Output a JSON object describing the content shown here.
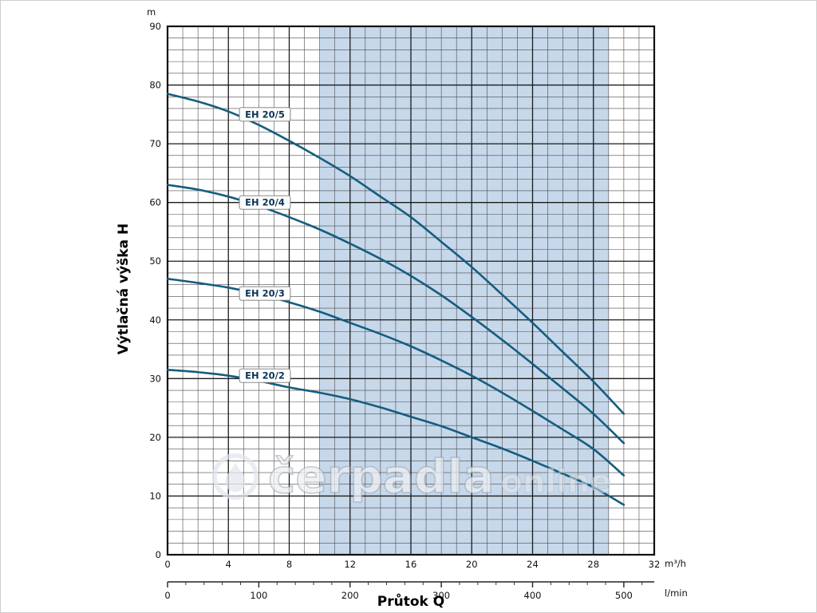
{
  "chart_data": {
    "type": "line",
    "title": "",
    "xlabel": "Průtok Q",
    "ylabel": "Výtlačná výška H",
    "y_unit": "m",
    "x_unit": "m³/h",
    "x_unit_secondary": "l/min",
    "xlim": [
      0,
      32
    ],
    "ylim": [
      0,
      90
    ],
    "grid": true,
    "x_major_ticks": [
      0,
      4,
      8,
      12,
      16,
      20,
      24,
      28,
      32
    ],
    "x_minor_step": 1,
    "y_major_ticks": [
      0,
      10,
      20,
      30,
      40,
      50,
      60,
      70,
      80,
      90
    ],
    "y_minor_step": 2,
    "secondary_axis": {
      "unit": "l/min",
      "ticks": [
        0,
        100,
        200,
        300,
        400,
        500
      ],
      "minor_step": 20,
      "max": 533.3,
      "lmin_per_m3h": 16.6667
    },
    "shaded_band": {
      "x_from": 10,
      "x_to": 29
    },
    "series": [
      {
        "name": "EH 20/5",
        "label": {
          "x": 6.4,
          "y": 75
        },
        "points": [
          [
            0,
            78.5
          ],
          [
            2,
            77.2
          ],
          [
            4,
            75.5
          ],
          [
            6,
            73.2
          ],
          [
            8,
            70.5
          ],
          [
            10,
            67.6
          ],
          [
            12,
            64.5
          ],
          [
            14,
            61.0
          ],
          [
            16,
            57.5
          ],
          [
            18,
            53.3
          ],
          [
            20,
            49.0
          ],
          [
            22,
            44.3
          ],
          [
            24,
            39.5
          ],
          [
            26,
            34.5
          ],
          [
            28,
            29.5
          ],
          [
            30,
            24.0
          ]
        ]
      },
      {
        "name": "EH 20/4",
        "label": {
          "x": 6.4,
          "y": 60
        },
        "points": [
          [
            0,
            63.0
          ],
          [
            2,
            62.2
          ],
          [
            4,
            61.0
          ],
          [
            6,
            59.4
          ],
          [
            8,
            57.5
          ],
          [
            10,
            55.4
          ],
          [
            12,
            53.0
          ],
          [
            14,
            50.4
          ],
          [
            16,
            47.5
          ],
          [
            18,
            44.2
          ],
          [
            20,
            40.5
          ],
          [
            22,
            36.6
          ],
          [
            24,
            32.5
          ],
          [
            26,
            28.3
          ],
          [
            28,
            24.0
          ],
          [
            30,
            19.0
          ]
        ]
      },
      {
        "name": "EH 20/3",
        "label": {
          "x": 6.4,
          "y": 44.5
        },
        "points": [
          [
            0,
            47.0
          ],
          [
            2,
            46.3
          ],
          [
            4,
            45.5
          ],
          [
            6,
            44.4
          ],
          [
            8,
            43.0
          ],
          [
            10,
            41.4
          ],
          [
            12,
            39.5
          ],
          [
            14,
            37.6
          ],
          [
            16,
            35.5
          ],
          [
            18,
            33.1
          ],
          [
            20,
            30.5
          ],
          [
            22,
            27.6
          ],
          [
            24,
            24.5
          ],
          [
            26,
            21.3
          ],
          [
            28,
            18.0
          ],
          [
            30,
            13.5
          ]
        ]
      },
      {
        "name": "EH 20/2",
        "label": {
          "x": 6.4,
          "y": 30.5
        },
        "points": [
          [
            0,
            31.5
          ],
          [
            2,
            31.1
          ],
          [
            4,
            30.5
          ],
          [
            6,
            29.6
          ],
          [
            8,
            28.5
          ],
          [
            10,
            27.6
          ],
          [
            12,
            26.5
          ],
          [
            14,
            25.1
          ],
          [
            16,
            23.5
          ],
          [
            18,
            21.9
          ],
          [
            20,
            20.0
          ],
          [
            22,
            18.1
          ],
          [
            24,
            16.0
          ],
          [
            26,
            13.8
          ],
          [
            28,
            11.5
          ],
          [
            30,
            8.5
          ]
        ]
      }
    ],
    "colors": {
      "curve": "#155d7f",
      "band": "#c6d8ea",
      "grid_minor": "#4a4a4a",
      "grid_major": "#1b1b1b",
      "border": "#111111",
      "label_box_fill": "#ffffff",
      "label_box_stroke": "#777777",
      "label_text": "#0c3354"
    },
    "watermark": {
      "brand": "čerpadla",
      "suffix": "online"
    }
  }
}
